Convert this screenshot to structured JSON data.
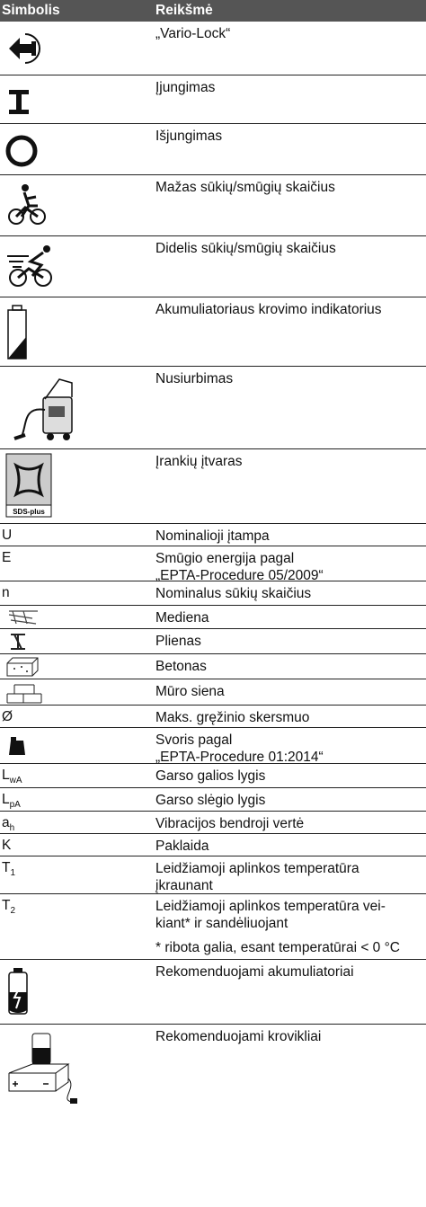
{
  "header": {
    "symbol": "Simbolis",
    "meaning": "Reikšmė"
  },
  "rows": [
    {
      "meaning": "„Vario-Lock“"
    },
    {
      "meaning": "Įjungimas"
    },
    {
      "meaning": "Išjungimas"
    },
    {
      "meaning": "Mažas sūkių/smūgių skaičius"
    },
    {
      "meaning": "Didelis sūkių/smūgių skaičius"
    },
    {
      "meaning": "Akumuliatoriaus krovimo indikatorius"
    },
    {
      "meaning": "Nusiurbimas"
    },
    {
      "meaning": "Įrankių įtvaras",
      "icon_label": "SDS-plus"
    },
    {
      "symbol": "U",
      "meaning": "Nominalioji įtampa"
    },
    {
      "symbol": "E",
      "meaning": [
        "Smūgio energija pagal",
        "„EPTA-Procedure 05/2009“"
      ]
    },
    {
      "symbol": "n",
      "meaning": "Nominalus sūkių skaičius"
    },
    {
      "meaning": "Mediena"
    },
    {
      "meaning": "Plienas"
    },
    {
      "meaning": "Betonas"
    },
    {
      "meaning": "Mūro siena"
    },
    {
      "symbol": "Ø",
      "meaning": "Maks. gręžinio skersmuo"
    },
    {
      "meaning": [
        "Svoris pagal",
        "„EPTA-Procedure 01:2014“"
      ]
    },
    {
      "symbol": "L",
      "symbol_sub": "wA",
      "meaning": "Garso galios lygis"
    },
    {
      "symbol": "L",
      "symbol_sub": "pA",
      "meaning": "Garso slėgio lygis"
    },
    {
      "symbol": "a",
      "symbol_sub": "h",
      "meaning": "Vibracijos bendroji vertė"
    },
    {
      "symbol": "K",
      "meaning": "Paklaida"
    },
    {
      "symbol": "T",
      "symbol_sub": "1",
      "meaning": [
        "Leidžiamoji aplinkos temperatūra",
        "įkraunant"
      ]
    },
    {
      "symbol": "T",
      "symbol_sub": "2",
      "meaning": [
        "Leidžiamoji aplinkos temperatūra vei-",
        "kiant* ir sandėliuojant"
      ],
      "note": "* ribota galia, esant temperatūrai < 0 °C"
    },
    {
      "meaning": "Rekomenduojami akumuliatoriai"
    },
    {
      "meaning": "Rekomenduojami krovikliai"
    }
  ]
}
